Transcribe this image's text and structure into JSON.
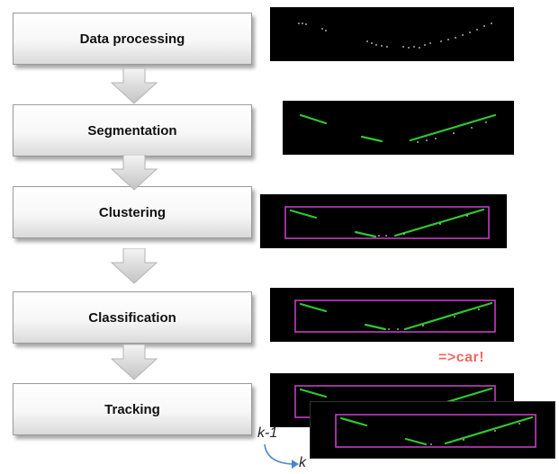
{
  "stages": [
    {
      "label": "Data processing"
    },
    {
      "label": "Segmentation"
    },
    {
      "label": "Clustering"
    },
    {
      "label": "Classification"
    },
    {
      "label": "Tracking"
    }
  ],
  "annotations": {
    "classification_result": "=>car!",
    "previous_frame": "k-1",
    "current_frame": "k"
  },
  "colors": {
    "segment": "#2fc82f",
    "bounding_box": "#c03fc0",
    "points": "#d8d8d8",
    "panel_bg": "#000000",
    "car_label": "#e86a63"
  }
}
